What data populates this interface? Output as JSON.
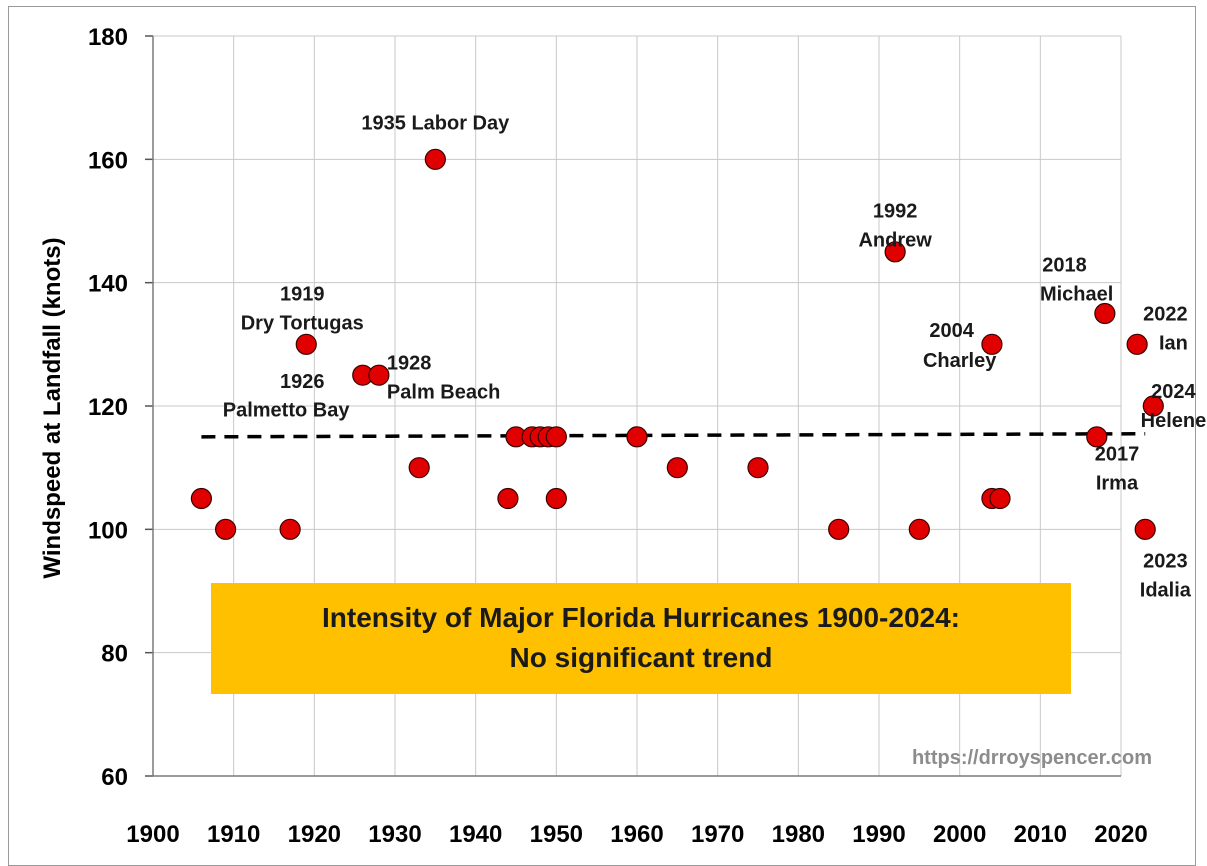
{
  "chart_data": {
    "type": "scatter",
    "title_lines": [
      "Intensity of Major Florida Hurricanes 1900-2024:",
      "No significant trend"
    ],
    "ylabel": "Windspeed at Landfall (knots)",
    "xlabel": "",
    "xlim": [
      1900,
      2025
    ],
    "ylim": [
      60,
      180
    ],
    "xticks": [
      1900,
      1910,
      1920,
      1930,
      1940,
      1950,
      1960,
      1970,
      1980,
      1990,
      2000,
      2010,
      2020
    ],
    "yticks": [
      60,
      80,
      100,
      120,
      140,
      160,
      180
    ],
    "grid": true,
    "marker_color": "#e00000",
    "trend_line": {
      "x": [
        1906,
        2023
      ],
      "y": [
        115,
        115.5
      ],
      "style": "dashed"
    },
    "points": [
      {
        "x": 1906,
        "y": 105
      },
      {
        "x": 1909,
        "y": 100
      },
      {
        "x": 1917,
        "y": 100
      },
      {
        "x": 1919,
        "y": 130
      },
      {
        "x": 1926,
        "y": 125
      },
      {
        "x": 1928,
        "y": 125
      },
      {
        "x": 1933,
        "y": 110
      },
      {
        "x": 1935,
        "y": 160
      },
      {
        "x": 1944,
        "y": 105
      },
      {
        "x": 1945,
        "y": 115
      },
      {
        "x": 1947,
        "y": 115
      },
      {
        "x": 1948,
        "y": 115
      },
      {
        "x": 1949,
        "y": 115
      },
      {
        "x": 1950,
        "y": 115
      },
      {
        "x": 1950,
        "y": 105
      },
      {
        "x": 1960,
        "y": 115
      },
      {
        "x": 1965,
        "y": 110
      },
      {
        "x": 1975,
        "y": 110
      },
      {
        "x": 1985,
        "y": 100
      },
      {
        "x": 1992,
        "y": 145
      },
      {
        "x": 1995,
        "y": 100
      },
      {
        "x": 2004,
        "y": 130
      },
      {
        "x": 2004,
        "y": 105
      },
      {
        "x": 2005,
        "y": 105
      },
      {
        "x": 2017,
        "y": 115
      },
      {
        "x": 2018,
        "y": 135
      },
      {
        "x": 2022,
        "y": 130
      },
      {
        "x": 2023,
        "y": 100
      },
      {
        "x": 2024,
        "y": 120
      }
    ],
    "annotations": [
      {
        "text": "1935 Labor Day",
        "x": 1935,
        "y": 164.8,
        "anchor": "middle"
      },
      {
        "text": "1992",
        "x": 1992,
        "y": 150.6,
        "anchor": "middle"
      },
      {
        "text": "Andrew",
        "x": 1992,
        "y": 145.9,
        "anchor": "middle"
      },
      {
        "text": "1919",
        "x": 1918.5,
        "y": 137.1,
        "anchor": "middle"
      },
      {
        "text": "Dry Tortugas",
        "x": 1918.5,
        "y": 132.4,
        "anchor": "middle"
      },
      {
        "text": "1928",
        "x": 1929,
        "y": 125.9,
        "anchor": "start"
      },
      {
        "text": "Palm Beach",
        "x": 1929,
        "y": 121.2,
        "anchor": "start"
      },
      {
        "text": "1926",
        "x": 1918.5,
        "y": 122.9,
        "anchor": "middle"
      },
      {
        "text": "Palmetto Bay",
        "x": 1916.5,
        "y": 118.3,
        "anchor": "middle"
      },
      {
        "text": "2004",
        "x": 1999,
        "y": 131.2,
        "anchor": "middle"
      },
      {
        "text": "Charley",
        "x": 2000,
        "y": 126.3,
        "anchor": "middle"
      },
      {
        "text": "2018",
        "x": 2013,
        "y": 141.8,
        "anchor": "middle"
      },
      {
        "text": "Michael",
        "x": 2014.5,
        "y": 137.1,
        "anchor": "middle"
      },
      {
        "text": "2022",
        "x": 2025.5,
        "y": 133.9,
        "anchor": "middle"
      },
      {
        "text": "Ian",
        "x": 2026.5,
        "y": 129.2,
        "anchor": "middle"
      },
      {
        "text": "2024",
        "x": 2026.5,
        "y": 121.3,
        "anchor": "middle"
      },
      {
        "text": "Helene",
        "x": 2026.5,
        "y": 116.6,
        "anchor": "middle"
      },
      {
        "text": "2017",
        "x": 2019.5,
        "y": 111.2,
        "anchor": "middle"
      },
      {
        "text": "Irma",
        "x": 2019.5,
        "y": 106.5,
        "anchor": "middle"
      },
      {
        "text": "2023",
        "x": 2025.5,
        "y": 93.8,
        "anchor": "middle"
      },
      {
        "text": "Idalia",
        "x": 2025.5,
        "y": 89.1,
        "anchor": "middle"
      }
    ],
    "watermark": "https://drroyspencer.com",
    "title_box_color": "#ffc000"
  }
}
